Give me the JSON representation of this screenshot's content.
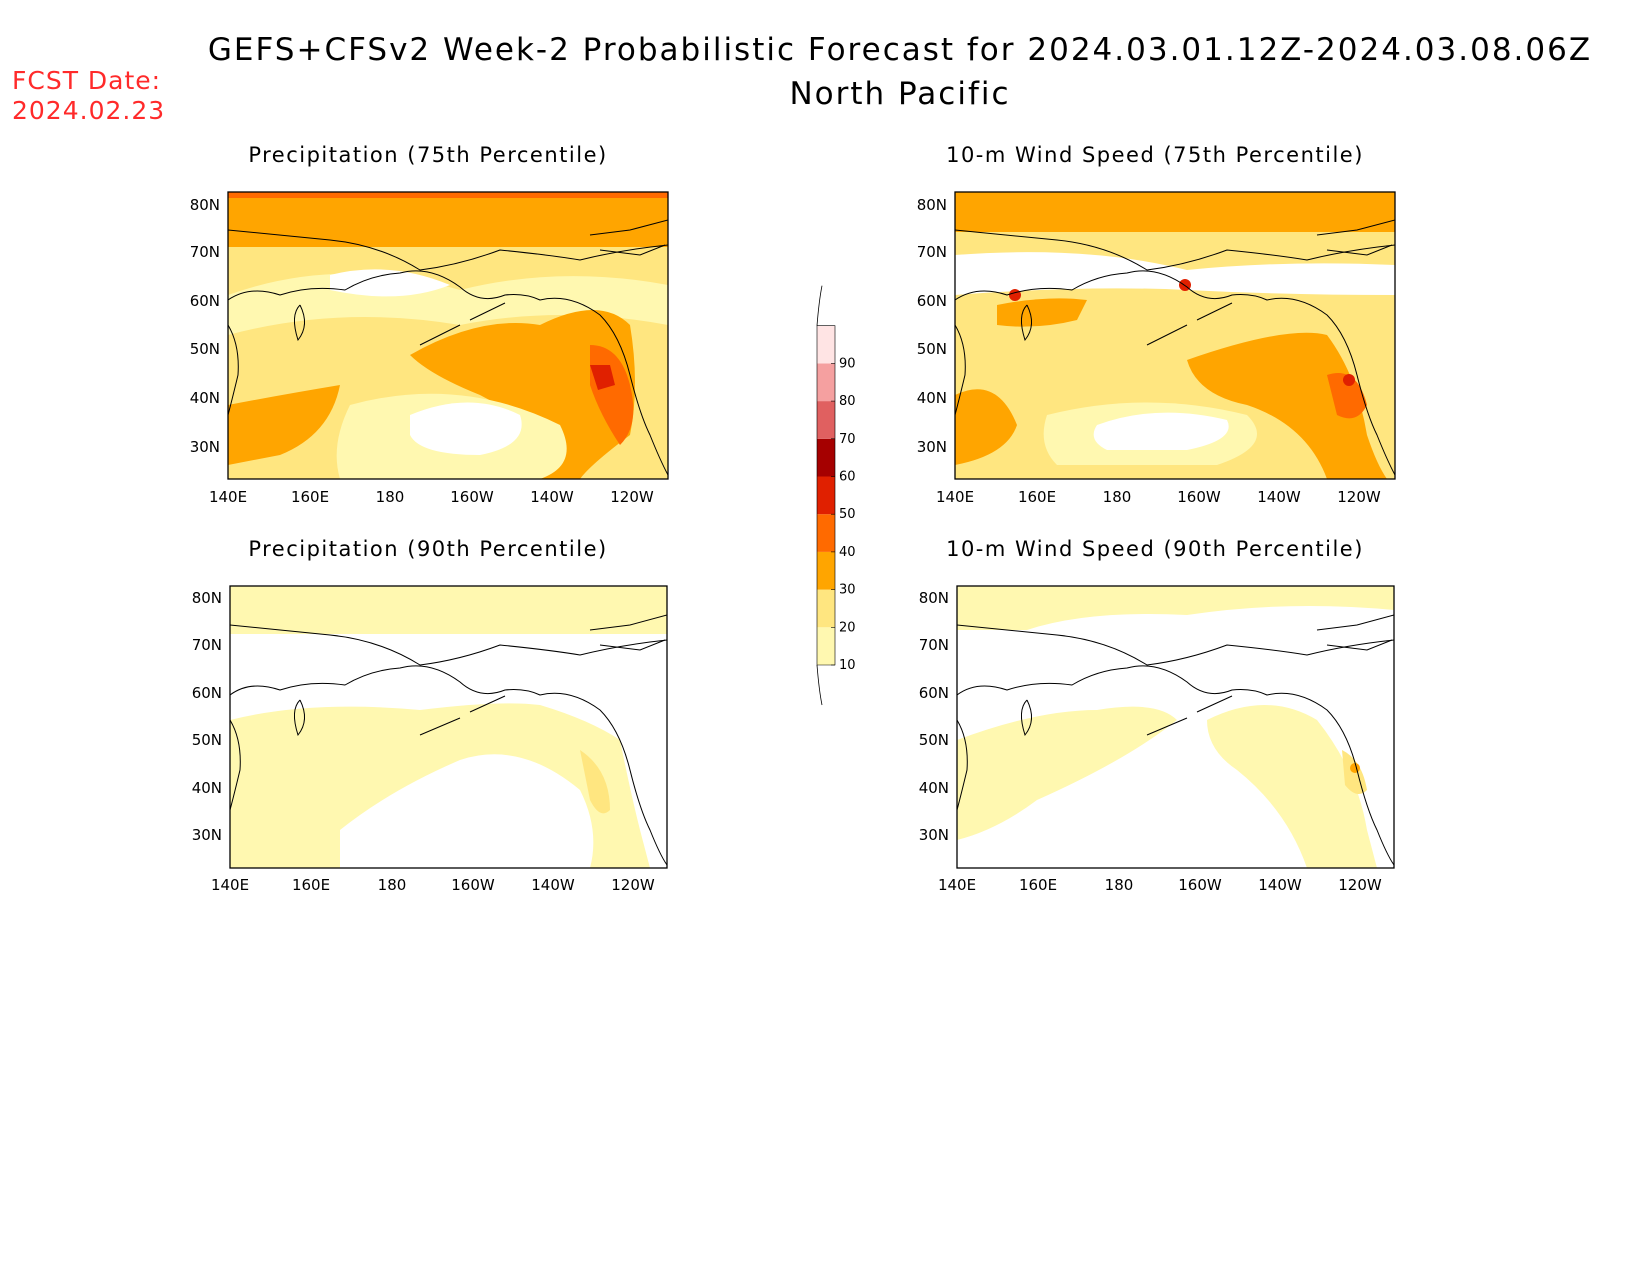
{
  "header": {
    "title": "GEFS+CFSv2 Week-2 Probabilistic Forecast for 2024.03.01.12Z-2024.03.08.06Z",
    "region": "North Pacific",
    "fcst_label": "FCST Date:",
    "fcst_date": "2024.02.23",
    "fcst_color": "#ff2a2a"
  },
  "axes": {
    "lat_labels": [
      "80N",
      "70N",
      "60N",
      "50N",
      "40N",
      "30N"
    ],
    "lon_labels": [
      "140E",
      "160E",
      "180",
      "160W",
      "140W",
      "120W"
    ]
  },
  "panels": [
    {
      "id": "precip75",
      "title": "Precipitation (75th Percentile)"
    },
    {
      "id": "wind75",
      "title": "10-m Wind Speed (75th Percentile)"
    },
    {
      "id": "precip90",
      "title": "Precipitation (90th Percentile)"
    },
    {
      "id": "wind90",
      "title": "10-m Wind Speed (90th Percentile)"
    }
  ],
  "colorbar": {
    "levels": [
      "10",
      "20",
      "30",
      "40",
      "50",
      "60",
      "70",
      "80",
      "90"
    ],
    "colors": [
      "#fff8b0",
      "#ffe680",
      "#ffa500",
      "#ff6a00",
      "#e02000",
      "#a50000",
      "#e06060",
      "#f5a0a0",
      "#ffe4e4"
    ]
  }
}
